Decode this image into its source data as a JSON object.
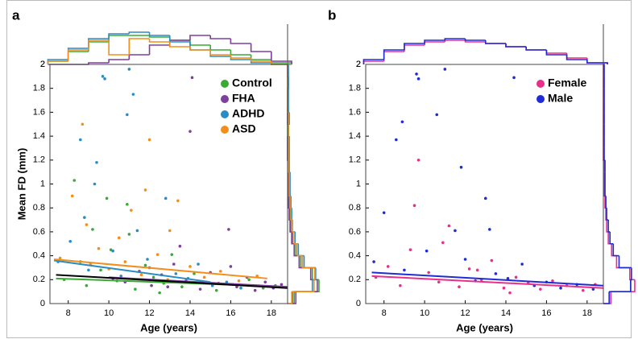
{
  "chart_data": [
    {
      "type": "scatter",
      "panel_label": "a",
      "xlabel": "Age (years)",
      "ylabel": "Mean FD (mm)",
      "xlim": [
        7.1,
        18.8
      ],
      "ylim": [
        0,
        2
      ],
      "xticks": [
        8,
        10,
        12,
        14,
        16,
        18
      ],
      "yticks": [
        0,
        0.2,
        0.4,
        0.6,
        0.8,
        1,
        1.2,
        1.4,
        1.6,
        1.8,
        2
      ],
      "legend": "upper right",
      "series": [
        {
          "name": "Control",
          "color": "#3aaa35",
          "x": [
            7.8,
            8.3,
            8.9,
            9.2,
            9.6,
            10.1,
            10.4,
            10.9,
            11.3,
            11.8,
            12.2,
            12.7,
            13.1,
            13.6,
            14.2,
            14.8,
            15.3,
            16.1,
            16.9,
            17.6,
            18.2,
            8.6,
            9.9,
            11.0,
            12.5
          ],
          "values": [
            0.2,
            1.03,
            0.15,
            0.62,
            0.28,
            0.45,
            0.19,
            0.83,
            0.12,
            0.32,
            0.22,
            0.17,
            0.41,
            0.14,
            0.25,
            0.18,
            0.11,
            0.16,
            0.2,
            0.13,
            0.15,
            0.35,
            0.88,
            0.58,
            0.09
          ]
        },
        {
          "name": "FHA",
          "color": "#7e3f9d",
          "x": [
            10.2,
            10.8,
            11.5,
            12.1,
            12.6,
            13.2,
            13.8,
            14.1,
            14.5,
            15.0,
            15.4,
            15.9,
            16.3,
            16.8,
            17.2,
            17.7,
            18.1,
            18.5,
            14.0,
            13.5,
            16.0,
            12.9
          ],
          "values": [
            0.21,
            0.18,
            0.27,
            0.15,
            0.24,
            0.33,
            0.19,
            1.89,
            0.12,
            0.26,
            0.17,
            0.62,
            0.14,
            0.22,
            0.11,
            0.18,
            0.13,
            0.16,
            1.44,
            0.48,
            0.31,
            0.14
          ]
        },
        {
          "name": "ADHD",
          "color": "#2b8cc4",
          "x": [
            7.5,
            8.1,
            8.6,
            9.0,
            9.4,
            9.7,
            9.8,
            10.2,
            10.6,
            11.0,
            11.4,
            11.9,
            12.3,
            12.8,
            13.3,
            13.9,
            14.4,
            15.1,
            15.8,
            16.5,
            9.3,
            8.8,
            10.9,
            12.0,
            11.2
          ],
          "values": [
            0.35,
            0.52,
            1.37,
            0.28,
            1.18,
            1.9,
            1.88,
            0.44,
            0.23,
            1.96,
            0.61,
            0.37,
            0.19,
            0.88,
            0.25,
            0.21,
            0.33,
            0.15,
            0.18,
            0.13,
            1.0,
            0.72,
            1.58,
            0.3,
            1.75
          ]
        },
        {
          "name": "ASD",
          "color": "#f28e1c",
          "x": [
            7.6,
            8.2,
            8.7,
            9.1,
            9.5,
            10.0,
            10.5,
            11.1,
            11.6,
            12.0,
            12.4,
            12.9,
            13.4,
            14.0,
            14.7,
            15.5,
            16.4,
            17.3,
            8.9,
            10.8,
            11.8,
            13.0
          ],
          "values": [
            0.38,
            0.9,
            1.5,
            0.33,
            0.46,
            0.29,
            0.55,
            0.78,
            0.24,
            1.37,
            0.41,
            0.2,
            0.86,
            0.31,
            0.22,
            0.27,
            0.19,
            0.23,
            0.66,
            0.35,
            0.95,
            0.61
          ]
        }
      ],
      "fits": [
        {
          "color": "#3aaa35",
          "x": [
            7.4,
            18.8
          ],
          "y": [
            0.21,
            0.14
          ]
        },
        {
          "color": "#7e3f9d",
          "x": [
            10.0,
            18.8
          ],
          "y": [
            0.22,
            0.14
          ]
        },
        {
          "color": "#2b8cc4",
          "x": [
            7.3,
            15.0
          ],
          "y": [
            0.36,
            0.18
          ]
        },
        {
          "color": "#f28e1c",
          "x": [
            7.3,
            17.8
          ],
          "y": [
            0.37,
            0.21
          ]
        },
        {
          "color": "#000000",
          "x": [
            7.4,
            18.8
          ],
          "y": [
            0.24,
            0.13
          ]
        }
      ]
    },
    {
      "type": "top-histogram",
      "top_label": "2",
      "bins": [
        7,
        8,
        9,
        10,
        11,
        12,
        13,
        14,
        15,
        16,
        17,
        18,
        19
      ],
      "ylim": [
        0,
        20
      ],
      "series": [
        {
          "name": "Control",
          "color": "#3aaa35",
          "values": [
            2,
            8,
            14,
            18,
            18,
            17,
            15,
            12,
            9,
            6,
            3,
            1
          ]
        },
        {
          "name": "FHA",
          "color": "#7e3f9d",
          "values": [
            0,
            0,
            1,
            3,
            6,
            12,
            15,
            18,
            16,
            13,
            8,
            2
          ]
        },
        {
          "name": "ADHD",
          "color": "#2b8cc4",
          "values": [
            3,
            10,
            16,
            19,
            20,
            18,
            14,
            9,
            5,
            3,
            1,
            0
          ]
        },
        {
          "name": "ASD",
          "color": "#f28e1c",
          "values": [
            2,
            9,
            15,
            6,
            16,
            14,
            11,
            9,
            6,
            4,
            2,
            0
          ]
        }
      ]
    },
    {
      "type": "right-histogram",
      "bins": [
        0,
        0.1,
        0.2,
        0.3,
        0.4,
        0.5,
        0.6,
        0.7,
        0.8,
        0.9,
        1,
        1.1,
        1.2,
        1.3,
        1.4,
        1.5,
        1.6,
        1.7,
        1.8,
        1.9,
        2
      ],
      "xlim": [
        0,
        40
      ],
      "series": [
        {
          "name": "Control",
          "color": "#3aaa35",
          "values": [
            8,
            38,
            30,
            16,
            10,
            6,
            4,
            3,
            2,
            1,
            1,
            1,
            0,
            0,
            0,
            0,
            0,
            0,
            0,
            0
          ]
        },
        {
          "name": "FHA",
          "color": "#7e3f9d",
          "values": [
            10,
            36,
            28,
            14,
            8,
            5,
            3,
            2,
            1,
            1,
            1,
            1,
            0,
            0,
            1,
            0,
            0,
            0,
            1,
            0
          ]
        },
        {
          "name": "ADHD",
          "color": "#2b8cc4",
          "values": [
            6,
            30,
            34,
            20,
            13,
            9,
            6,
            5,
            4,
            3,
            3,
            2,
            2,
            2,
            1,
            2,
            1,
            1,
            1,
            1
          ]
        },
        {
          "name": "ASD",
          "color": "#f28e1c",
          "values": [
            5,
            32,
            33,
            18,
            12,
            8,
            6,
            4,
            3,
            2,
            2,
            1,
            1,
            1,
            1,
            1,
            0,
            0,
            0,
            0
          ]
        }
      ]
    },
    {
      "type": "scatter",
      "panel_label": "b",
      "xlabel": "Age (years)",
      "xlim": [
        7.1,
        18.8
      ],
      "ylim": [
        0,
        2
      ],
      "xticks": [
        8,
        10,
        12,
        14,
        16,
        18
      ],
      "yticks": [
        0,
        0.2,
        0.4,
        0.6,
        0.8,
        1,
        1.2,
        1.4,
        1.6,
        1.8,
        2
      ],
      "legend": "upper right",
      "series": [
        {
          "name": "Female",
          "color": "#e8308a",
          "x": [
            7.6,
            8.2,
            8.8,
            9.3,
            9.7,
            10.2,
            10.7,
            11.2,
            11.7,
            12.2,
            12.8,
            13.3,
            13.9,
            14.5,
            15.1,
            15.7,
            16.3,
            17.0,
            17.8,
            18.4,
            9.5,
            10.9,
            12.6,
            14.2
          ],
          "values": [
            0.22,
            0.31,
            0.15,
            0.45,
            1.2,
            0.26,
            0.18,
            0.65,
            0.14,
            0.29,
            0.2,
            0.36,
            0.13,
            0.22,
            0.17,
            0.12,
            0.19,
            0.15,
            0.11,
            0.16,
            0.82,
            0.51,
            0.28,
            0.09
          ]
        },
        {
          "name": "Male",
          "color": "#1f2bd6",
          "x": [
            7.5,
            8.0,
            8.6,
            9.0,
            9.6,
            9.7,
            10.1,
            10.6,
            11.0,
            11.5,
            12.0,
            12.5,
            13.0,
            13.5,
            14.1,
            14.4,
            14.8,
            15.4,
            16.0,
            16.7,
            17.5,
            18.3,
            8.9,
            11.8,
            13.2
          ],
          "values": [
            0.35,
            0.76,
            1.37,
            0.28,
            1.92,
            1.88,
            0.44,
            1.58,
            1.96,
            0.61,
            0.37,
            0.19,
            0.88,
            0.25,
            0.21,
            1.89,
            0.33,
            0.15,
            0.18,
            0.13,
            0.16,
            0.12,
            1.52,
            1.14,
            0.62
          ]
        }
      ],
      "fits": [
        {
          "color": "#e8308a",
          "x": [
            7.4,
            18.8
          ],
          "y": [
            0.23,
            0.13
          ]
        },
        {
          "color": "#1f2bd6",
          "x": [
            7.4,
            18.8
          ],
          "y": [
            0.26,
            0.15
          ]
        }
      ]
    },
    {
      "type": "top-histogram",
      "top_label": "2",
      "bins": [
        7,
        8,
        9,
        10,
        11,
        12,
        13,
        14,
        15,
        16,
        17,
        18,
        19
      ],
      "ylim": [
        0,
        20
      ],
      "series": [
        {
          "name": "Female",
          "color": "#e8308a",
          "values": [
            2,
            8,
            12,
            14,
            15,
            14,
            13,
            11,
            9,
            7,
            4,
            1
          ]
        },
        {
          "name": "Male",
          "color": "#1f2bd6",
          "values": [
            3,
            9,
            13,
            15,
            16,
            15,
            13,
            11,
            9,
            6,
            3,
            1
          ]
        }
      ]
    },
    {
      "type": "right-histogram",
      "bins": [
        0,
        0.1,
        0.2,
        0.3,
        0.4,
        0.5,
        0.6,
        0.7,
        0.8,
        0.9,
        1,
        1.1,
        1.2,
        1.3,
        1.4,
        1.5,
        1.6,
        1.7,
        1.8,
        1.9,
        2
      ],
      "xlim": [
        0,
        40
      ],
      "series": [
        {
          "name": "Female",
          "color": "#e8308a",
          "values": [
            9,
            38,
            32,
            16,
            10,
            6,
            4,
            3,
            2,
            1,
            1,
            1,
            0,
            0,
            0,
            0,
            0,
            0,
            0,
            0
          ]
        },
        {
          "name": "Male",
          "color": "#1f2bd6",
          "values": [
            7,
            33,
            34,
            19,
            12,
            8,
            6,
            4,
            3,
            2,
            2,
            2,
            1,
            1,
            1,
            1,
            1,
            1,
            1,
            1
          ]
        }
      ]
    }
  ]
}
